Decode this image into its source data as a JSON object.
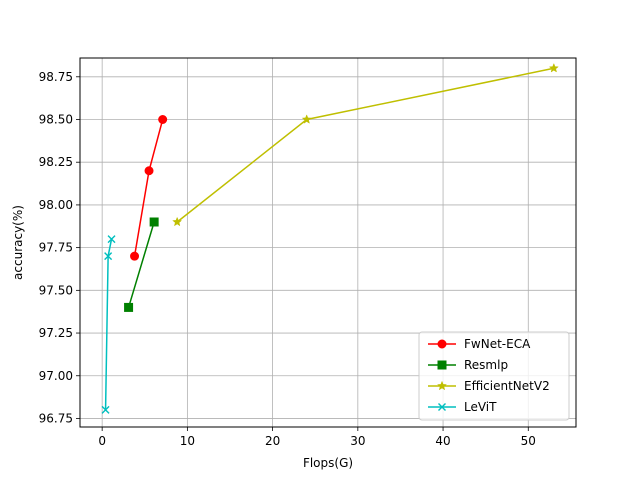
{
  "chart_data": {
    "type": "line",
    "title": "",
    "xlabel": "Flops(G)",
    "ylabel": "accuracy(%)",
    "xlim": [
      -2.6,
      55.6
    ],
    "ylim": [
      96.7,
      98.86
    ],
    "xticks": [
      0,
      10,
      20,
      30,
      40,
      50
    ],
    "xtick_labels": [
      "0",
      "10",
      "20",
      "30",
      "40",
      "50"
    ],
    "yticks": [
      96.75,
      97.0,
      97.25,
      97.5,
      97.75,
      98.0,
      98.25,
      98.5,
      98.75
    ],
    "ytick_labels": [
      "96.75",
      "97.00",
      "97.25",
      "97.50",
      "97.75",
      "98.00",
      "98.25",
      "98.50",
      "98.75"
    ],
    "grid": true,
    "legend_position": "lower-right",
    "series": [
      {
        "name": "FwNet-ECA",
        "color": "#ff0000",
        "marker": "circle",
        "x": [
          3.8,
          5.5,
          7.1
        ],
        "y": [
          97.7,
          98.2,
          98.5
        ]
      },
      {
        "name": "Resmlp",
        "color": "#008000",
        "marker": "square",
        "x": [
          3.1,
          6.1
        ],
        "y": [
          97.4,
          97.9
        ]
      },
      {
        "name": "EfficientNetV2",
        "color": "#bfbf00",
        "marker": "star",
        "x": [
          8.8,
          24.0,
          53.0
        ],
        "y": [
          97.9,
          98.5,
          98.8
        ]
      },
      {
        "name": "LeViT",
        "color": "#00bfbf",
        "marker": "x",
        "x": [
          0.4,
          0.7,
          1.1
        ],
        "y": [
          96.8,
          97.7,
          97.8
        ]
      }
    ]
  }
}
